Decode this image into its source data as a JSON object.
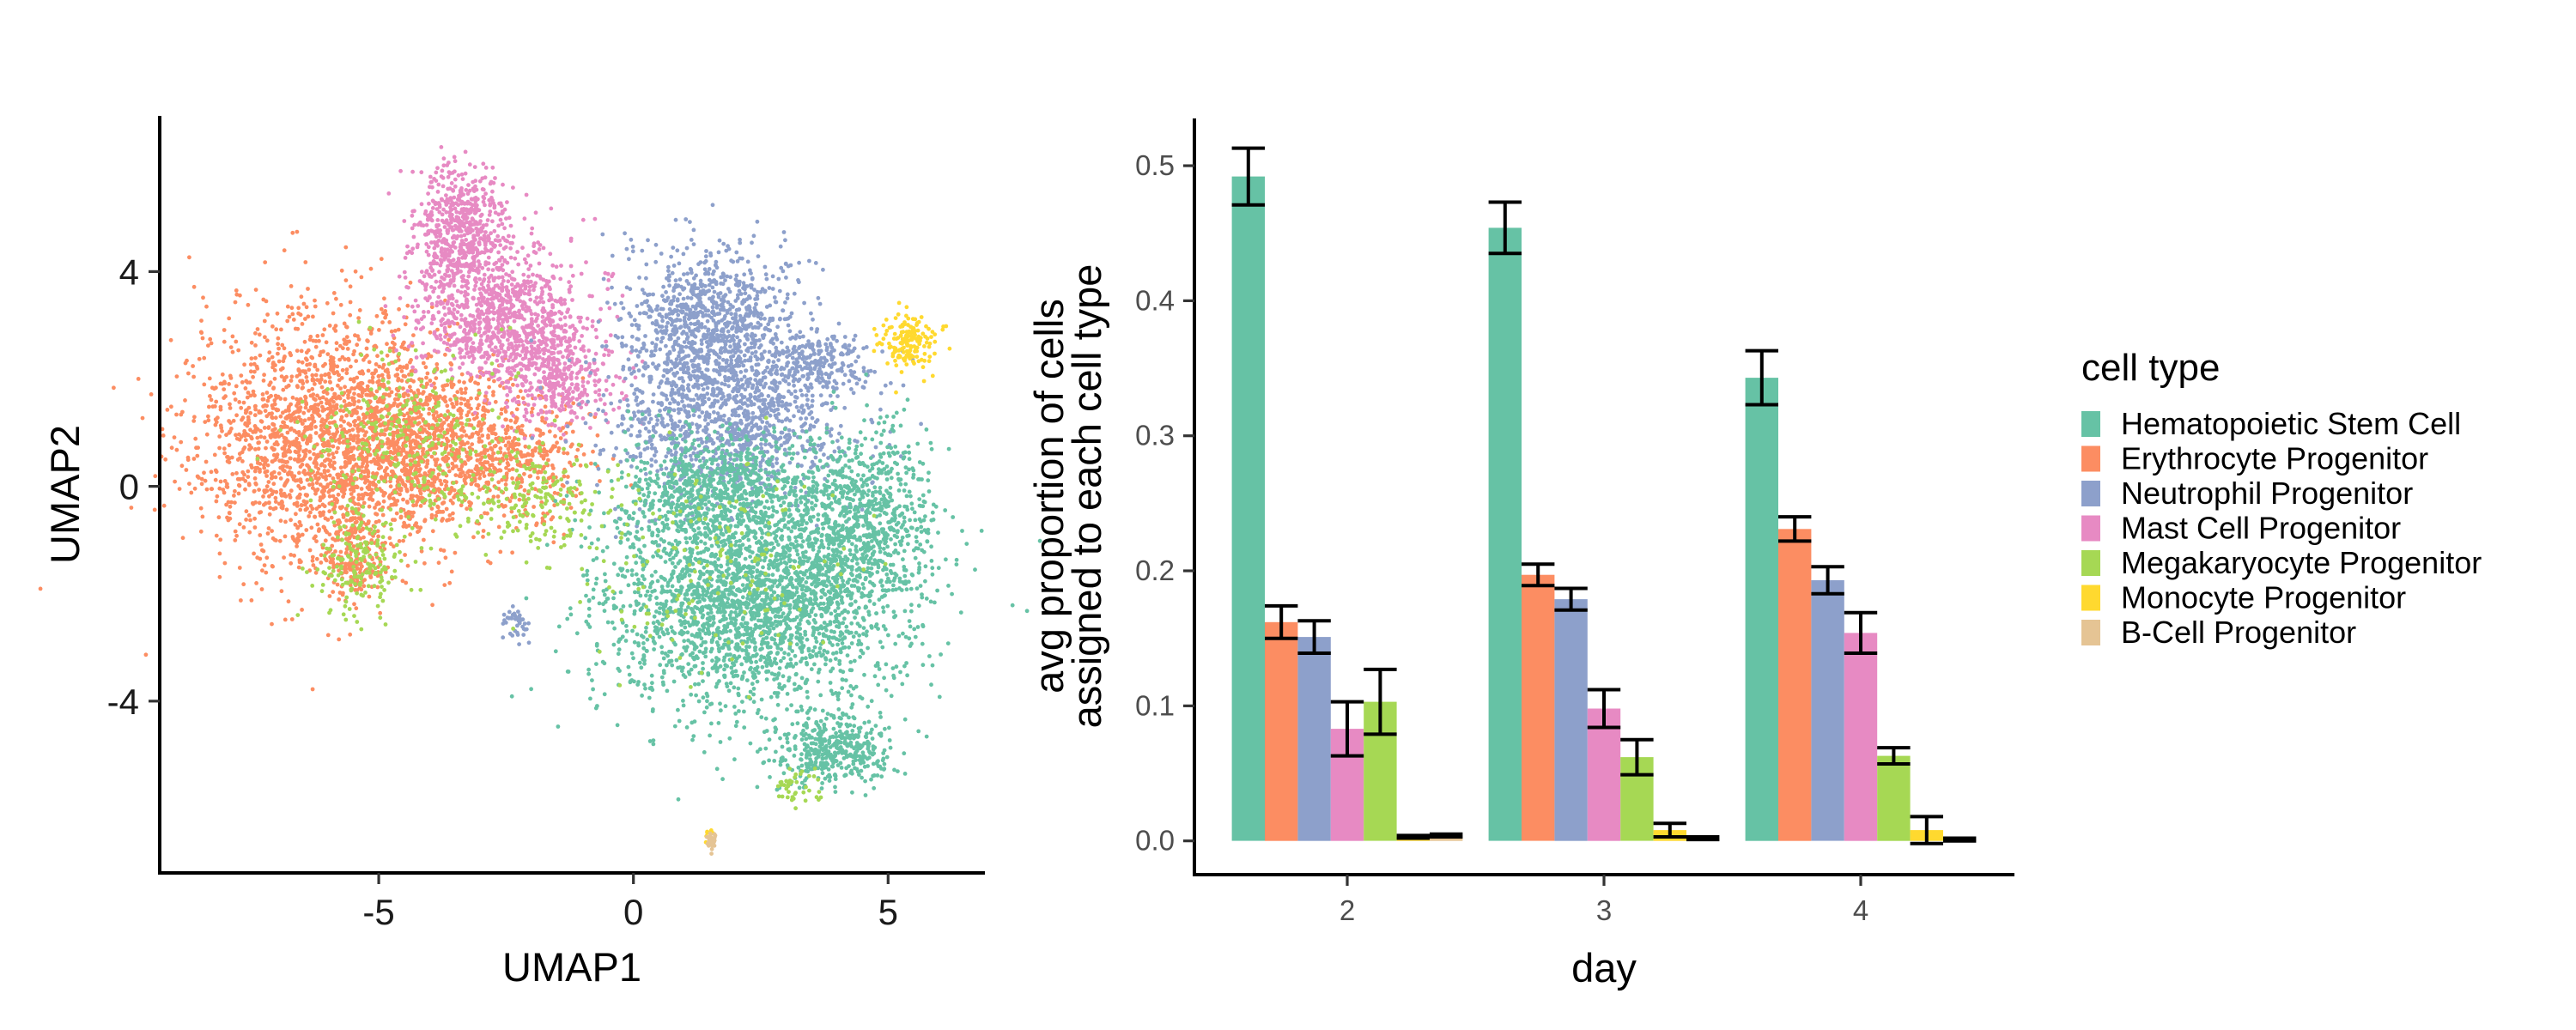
{
  "colors": {
    "Hematopoietic Stem Cell": "#66C2A5",
    "Erythrocyte Progenitor": "#FC8D62",
    "Neutrophil Progenitor": "#8DA0CB",
    "Mast Cell Progenitor": "#E78AC3",
    "Megakaryocyte Progenitor": "#A6D854",
    "Monocyte Progenitor": "#FFD92F",
    "B-Cell Progenitor": "#E5C494"
  },
  "chart_data": [
    {
      "type": "scatter",
      "xlabel": "UMAP1",
      "ylabel": "UMAP2",
      "xlim": [
        -9.3,
        6.9
      ],
      "ylim": [
        -7.2,
        6.9
      ],
      "xticks": [
        -5,
        0,
        5
      ],
      "yticks": [
        -4,
        0,
        4
      ],
      "grid": false,
      "clusters": [
        {
          "name": "Erythrocyte Progenitor",
          "regions": [
            {
              "cx": -6.0,
              "cy": 0.9,
              "rx": 2.4,
              "ry": 2.1,
              "n": 2000
            },
            {
              "cx": -4.3,
              "cy": 0.7,
              "rx": 1.4,
              "ry": 1.4,
              "n": 700
            },
            {
              "cx": -2.3,
              "cy": 0.6,
              "rx": 1.2,
              "ry": 1.1,
              "n": 420
            },
            {
              "cx": -5.5,
              "cy": -1.3,
              "rx": 0.6,
              "ry": 0.8,
              "n": 180
            }
          ]
        },
        {
          "name": "Mast Cell Progenitor",
          "regions": [
            {
              "cx": -3.4,
              "cy": 4.8,
              "rx": 0.8,
              "ry": 1.0,
              "n": 600
            },
            {
              "cx": -2.6,
              "cy": 3.2,
              "rx": 1.5,
              "ry": 1.1,
              "n": 900
            },
            {
              "cx": -1.5,
              "cy": 2.0,
              "rx": 1.0,
              "ry": 0.8,
              "n": 380
            }
          ]
        },
        {
          "name": "Neutrophil Progenitor",
          "regions": [
            {
              "cx": 1.5,
              "cy": 3.0,
              "rx": 1.5,
              "ry": 1.3,
              "n": 1000
            },
            {
              "cx": 1.8,
              "cy": 1.2,
              "rx": 2.1,
              "ry": 1.4,
              "n": 1100
            },
            {
              "cx": 3.6,
              "cy": 2.3,
              "rx": 0.9,
              "ry": 0.5,
              "n": 220
            },
            {
              "cx": -2.3,
              "cy": -2.6,
              "rx": 0.25,
              "ry": 0.25,
              "n": 40
            }
          ]
        },
        {
          "name": "Hematopoietic Stem Cell",
          "regions": [
            {
              "cx": 2.3,
              "cy": -2.0,
              "rx": 2.6,
              "ry": 2.0,
              "n": 2600
            },
            {
              "cx": 4.5,
              "cy": -0.7,
              "rx": 1.3,
              "ry": 1.6,
              "n": 800
            },
            {
              "cx": 3.9,
              "cy": -4.9,
              "rx": 1.1,
              "ry": 0.6,
              "n": 420
            },
            {
              "cx": 1.6,
              "cy": 0.0,
              "rx": 1.5,
              "ry": 0.9,
              "n": 600
            }
          ]
        },
        {
          "name": "Megakaryocyte Progenitor",
          "regions": [
            {
              "cx": -5.4,
              "cy": -1.4,
              "rx": 0.7,
              "ry": 0.9,
              "n": 180
            },
            {
              "cx": -4.5,
              "cy": 0.8,
              "rx": 1.6,
              "ry": 1.6,
              "n": 300
            },
            {
              "cx": -2.0,
              "cy": -0.2,
              "rx": 1.3,
              "ry": 0.9,
              "n": 200
            },
            {
              "cx": 3.2,
              "cy": -5.6,
              "rx": 0.5,
              "ry": 0.3,
              "n": 40
            },
            {
              "cx": 1.5,
              "cy": -1.5,
              "rx": 2.5,
              "ry": 2.0,
              "n": 150
            }
          ]
        },
        {
          "name": "Monocyte Progenitor",
          "regions": [
            {
              "cx": 5.4,
              "cy": 2.7,
              "rx": 0.5,
              "ry": 0.5,
              "n": 160
            },
            {
              "cx": 1.5,
              "cy": -6.5,
              "rx": 0.1,
              "ry": 0.1,
              "n": 10
            }
          ]
        },
        {
          "name": "B-Cell Progenitor",
          "regions": [
            {
              "cx": 1.5,
              "cy": -6.6,
              "rx": 0.12,
              "ry": 0.15,
              "n": 25
            }
          ]
        }
      ]
    },
    {
      "type": "bar",
      "xlabel": "day",
      "ylabel": [
        "avg proportion of cells",
        "assigned to each cell type"
      ],
      "categories": [
        "2",
        "3",
        "4"
      ],
      "ylim": [
        -0.025,
        0.535
      ],
      "yticks": [
        0.0,
        0.1,
        0.2,
        0.3,
        0.4,
        0.5
      ],
      "ytick_labels": [
        "0.0",
        "0.1",
        "0.2",
        "0.3",
        "0.4",
        "0.5"
      ],
      "grid": false,
      "series": [
        {
          "name": "Hematopoietic Stem Cell",
          "values": [
            0.492,
            0.454,
            0.343
          ],
          "err": [
            0.021,
            0.019,
            0.02
          ]
        },
        {
          "name": "Erythrocyte Progenitor",
          "values": [
            0.162,
            0.197,
            0.231
          ],
          "err": [
            0.012,
            0.008,
            0.009
          ]
        },
        {
          "name": "Neutrophil Progenitor",
          "values": [
            0.151,
            0.179,
            0.193
          ],
          "err": [
            0.012,
            0.008,
            0.01
          ]
        },
        {
          "name": "Mast Cell Progenitor",
          "values": [
            0.083,
            0.098,
            0.154
          ],
          "err": [
            0.02,
            0.014,
            0.015
          ]
        },
        {
          "name": "Megakaryocyte Progenitor",
          "values": [
            0.103,
            0.062,
            0.063
          ],
          "err": [
            0.024,
            0.013,
            0.006
          ]
        },
        {
          "name": "Monocyte Progenitor",
          "values": [
            0.003,
            0.008,
            0.008
          ],
          "err": [
            0.001,
            0.005,
            0.01
          ]
        },
        {
          "name": "B-Cell Progenitor",
          "values": [
            0.004,
            0.002,
            0.001
          ],
          "err": [
            0.001,
            0.001,
            0.001
          ]
        }
      ],
      "legend": {
        "title": "cell type",
        "position": "right",
        "items": [
          "Hematopoietic Stem Cell",
          "Erythrocyte Progenitor",
          "Neutrophil Progenitor",
          "Mast Cell Progenitor",
          "Megakaryocyte Progenitor",
          "Monocyte Progenitor",
          "B-Cell Progenitor"
        ]
      }
    }
  ]
}
